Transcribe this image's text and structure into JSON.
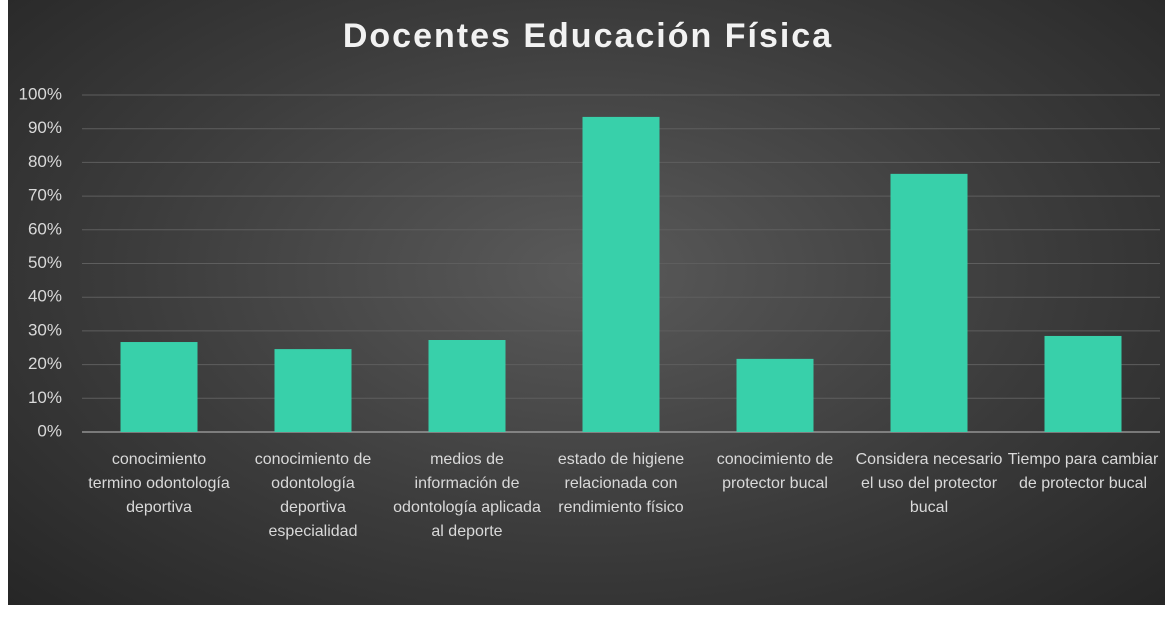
{
  "chart_data": {
    "type": "bar",
    "title": "Docentes Educación Física",
    "categories": [
      "conocimiento termino odontología deportiva",
      "conocimiento de odontología deportiva especialidad",
      "medios de información de odontología aplicada al deporte",
      "estado de higiene relacionada con rendimiento físico",
      "conocimiento de protector bucal",
      "Considera necesario el uso del protector bucal",
      "Tiempo para cambiar de protector bucal"
    ],
    "values": [
      26.7,
      24.6,
      27.3,
      93.5,
      21.7,
      76.6,
      28.5
    ],
    "color": "#38d0aa",
    "ylim": [
      0,
      100
    ],
    "yticks": [
      {
        "value": 0,
        "label": "0%"
      },
      {
        "value": 10,
        "label": "10%"
      },
      {
        "value": 20,
        "label": "20%"
      },
      {
        "value": 30,
        "label": "30%"
      },
      {
        "value": 40,
        "label": "40%"
      },
      {
        "value": 50,
        "label": "50%"
      },
      {
        "value": 60,
        "label": "60%"
      },
      {
        "value": 70,
        "label": "70%"
      },
      {
        "value": 80,
        "label": "80%"
      },
      {
        "value": 90,
        "label": "90%"
      },
      {
        "value": 100,
        "label": "100%"
      }
    ],
    "grid": true
  }
}
